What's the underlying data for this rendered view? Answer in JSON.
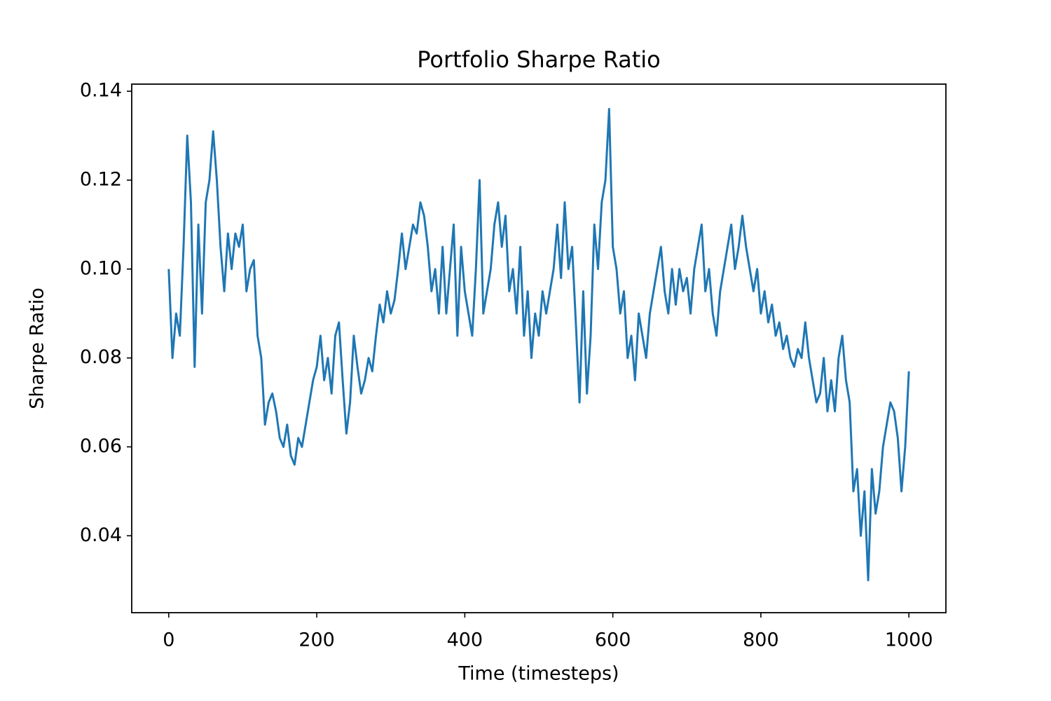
{
  "chart_data": {
    "type": "line",
    "title": "Portfolio Sharpe Ratio",
    "x_label": "Time (timesteps)",
    "y_label": "Sharpe Ratio",
    "x": [
      0,
      5,
      10,
      15,
      20,
      25,
      30,
      35,
      40,
      45,
      50,
      55,
      60,
      65,
      70,
      75,
      80,
      85,
      90,
      95,
      100,
      105,
      110,
      115,
      120,
      125,
      130,
      135,
      140,
      145,
      150,
      155,
      160,
      165,
      170,
      175,
      180,
      185,
      190,
      195,
      200,
      205,
      210,
      215,
      220,
      225,
      230,
      235,
      240,
      245,
      250,
      255,
      260,
      265,
      270,
      275,
      280,
      285,
      290,
      295,
      300,
      305,
      310,
      315,
      320,
      325,
      330,
      335,
      340,
      345,
      350,
      355,
      360,
      365,
      370,
      375,
      380,
      385,
      390,
      395,
      400,
      405,
      410,
      415,
      420,
      425,
      430,
      435,
      440,
      445,
      450,
      455,
      460,
      465,
      470,
      475,
      480,
      485,
      490,
      495,
      500,
      505,
      510,
      515,
      520,
      525,
      530,
      535,
      540,
      545,
      550,
      555,
      560,
      565,
      570,
      575,
      580,
      585,
      590,
      595,
      600,
      605,
      610,
      615,
      620,
      625,
      630,
      635,
      640,
      645,
      650,
      655,
      660,
      665,
      670,
      675,
      680,
      685,
      690,
      695,
      700,
      705,
      710,
      715,
      720,
      725,
      730,
      735,
      740,
      745,
      750,
      755,
      760,
      765,
      770,
      775,
      780,
      785,
      790,
      795,
      800,
      805,
      810,
      815,
      820,
      825,
      830,
      835,
      840,
      845,
      850,
      855,
      860,
      865,
      870,
      875,
      880,
      885,
      890,
      895,
      900,
      905,
      910,
      915,
      920,
      925,
      930,
      935,
      940,
      945,
      950,
      955,
      960,
      965,
      970,
      975,
      980,
      985,
      990,
      995,
      1000
    ],
    "series": [
      {
        "name": "Sharpe Ratio",
        "color": "#1f77b4",
        "values": [
          0.1,
          0.08,
          0.09,
          0.085,
          0.105,
          0.13,
          0.115,
          0.078,
          0.11,
          0.09,
          0.115,
          0.12,
          0.131,
          0.12,
          0.105,
          0.095,
          0.108,
          0.1,
          0.108,
          0.105,
          0.11,
          0.095,
          0.1,
          0.102,
          0.085,
          0.08,
          0.065,
          0.07,
          0.072,
          0.068,
          0.062,
          0.06,
          0.065,
          0.058,
          0.056,
          0.062,
          0.06,
          0.065,
          0.07,
          0.075,
          0.078,
          0.085,
          0.075,
          0.08,
          0.072,
          0.085,
          0.088,
          0.075,
          0.063,
          0.07,
          0.085,
          0.078,
          0.072,
          0.075,
          0.08,
          0.077,
          0.085,
          0.092,
          0.088,
          0.095,
          0.09,
          0.093,
          0.1,
          0.108,
          0.1,
          0.105,
          0.11,
          0.108,
          0.115,
          0.112,
          0.105,
          0.095,
          0.1,
          0.09,
          0.105,
          0.09,
          0.1,
          0.11,
          0.085,
          0.105,
          0.095,
          0.09,
          0.085,
          0.1,
          0.12,
          0.09,
          0.095,
          0.1,
          0.11,
          0.115,
          0.105,
          0.112,
          0.095,
          0.1,
          0.09,
          0.105,
          0.085,
          0.095,
          0.08,
          0.09,
          0.085,
          0.095,
          0.09,
          0.095,
          0.1,
          0.11,
          0.098,
          0.115,
          0.1,
          0.105,
          0.088,
          0.07,
          0.095,
          0.072,
          0.085,
          0.11,
          0.1,
          0.115,
          0.12,
          0.136,
          0.105,
          0.1,
          0.09,
          0.095,
          0.08,
          0.085,
          0.075,
          0.09,
          0.085,
          0.08,
          0.09,
          0.095,
          0.1,
          0.105,
          0.095,
          0.09,
          0.1,
          0.092,
          0.1,
          0.095,
          0.098,
          0.09,
          0.1,
          0.105,
          0.11,
          0.095,
          0.1,
          0.09,
          0.085,
          0.095,
          0.1,
          0.105,
          0.11,
          0.1,
          0.105,
          0.112,
          0.105,
          0.1,
          0.095,
          0.1,
          0.09,
          0.095,
          0.088,
          0.092,
          0.085,
          0.088,
          0.082,
          0.085,
          0.08,
          0.078,
          0.082,
          0.08,
          0.088,
          0.08,
          0.075,
          0.07,
          0.072,
          0.08,
          0.068,
          0.075,
          0.068,
          0.08,
          0.085,
          0.075,
          0.07,
          0.05,
          0.055,
          0.04,
          0.05,
          0.03,
          0.055,
          0.045,
          0.05,
          0.06,
          0.065,
          0.07,
          0.068,
          0.062,
          0.05,
          0.06,
          0.077
        ]
      }
    ],
    "xlim": [
      -50,
      1050
    ],
    "ylim": [
      0.0227,
      0.1416
    ],
    "xticks": [
      0,
      200,
      400,
      600,
      800,
      1000
    ],
    "yticks": [
      0.04,
      0.06,
      0.08,
      {
        "value": 0.1,
        "label": "0.10"
      },
      0.12,
      0.14
    ],
    "grid": false
  }
}
